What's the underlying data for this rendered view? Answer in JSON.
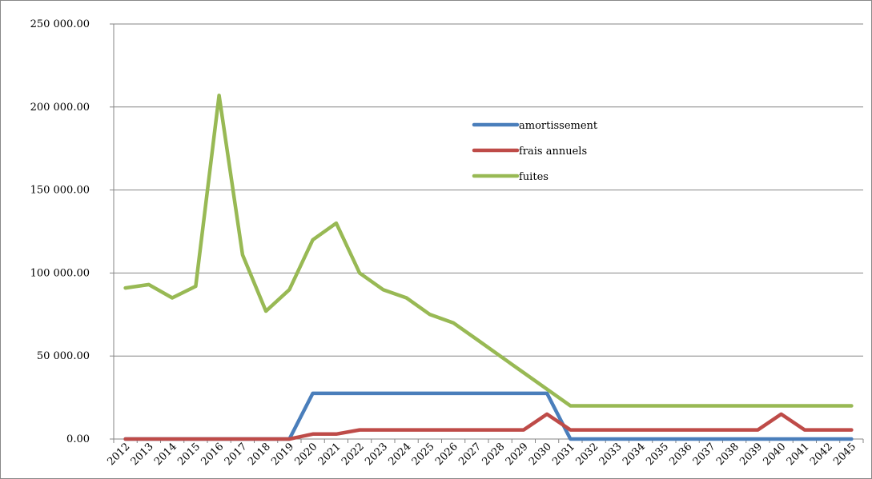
{
  "chart_data": {
    "type": "line",
    "title": "",
    "xlabel": "",
    "ylabel": "",
    "ylim": [
      0,
      250000
    ],
    "y_ticks": [
      "0.00",
      "50 000.00",
      "100 000.00",
      "150 000.00",
      "200 000.00",
      "250 000.00"
    ],
    "y_tick_values": [
      0,
      50000,
      100000,
      150000,
      200000,
      250000
    ],
    "grid": "horizontal",
    "legend_position": "upper-middle-right",
    "categories": [
      "2012",
      "2013",
      "2014",
      "2015",
      "2016",
      "2017",
      "2018",
      "2019",
      "2020",
      "2021",
      "2022",
      "2023",
      "2024",
      "2025",
      "2026",
      "2027",
      "2028",
      "2029",
      "2030",
      "2031",
      "2032",
      "2033",
      "2034",
      "2035",
      "2036",
      "2037",
      "2038",
      "2039",
      "2040",
      "2041",
      "2042",
      "2045"
    ],
    "series": [
      {
        "name": "amortissement",
        "color": "#4a7ebb",
        "values": [
          0,
          0,
          0,
          0,
          0,
          0,
          0,
          0,
          27500,
          27500,
          27500,
          27500,
          27500,
          27500,
          27500,
          27500,
          27500,
          27500,
          27500,
          0,
          0,
          0,
          0,
          0,
          0,
          0,
          0,
          0,
          0,
          0,
          0,
          0
        ]
      },
      {
        "name": "frais annuels",
        "color": "#be4b48",
        "values": [
          0,
          0,
          0,
          0,
          0,
          0,
          0,
          0,
          3000,
          3000,
          5500,
          5500,
          5500,
          5500,
          5500,
          5500,
          5500,
          5500,
          15000,
          5500,
          5500,
          5500,
          5500,
          5500,
          5500,
          5500,
          5500,
          5500,
          15000,
          5500,
          5500,
          5500
        ]
      },
      {
        "name": "fuites",
        "color": "#98b954",
        "values": [
          91000,
          93000,
          85000,
          92000,
          207000,
          111000,
          77000,
          90000,
          120000,
          130000,
          100000,
          90000,
          85000,
          75000,
          70000,
          60000,
          50000,
          40000,
          30000,
          20000,
          20000,
          20000,
          20000,
          20000,
          20000,
          20000,
          20000,
          20000,
          20000,
          20000,
          20000,
          20000
        ]
      }
    ]
  }
}
